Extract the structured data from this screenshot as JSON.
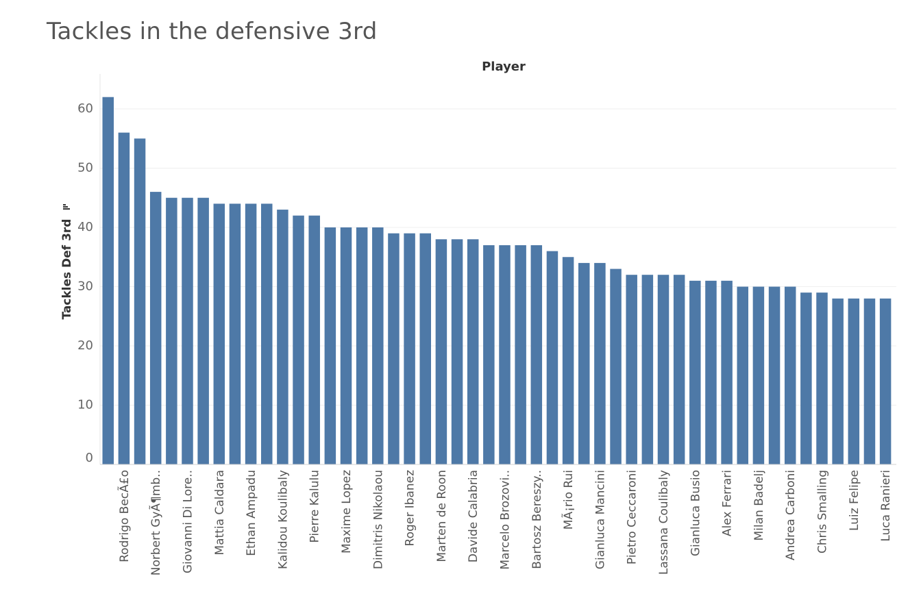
{
  "chart_data": {
    "type": "bar",
    "title": "Tackles in the defensive 3rd",
    "column_header": "Player",
    "ylabel": "Tackles Def 3rd",
    "ylabel_sort_icon": "sort-descending-icon",
    "ylim": [
      0,
      65
    ],
    "yticks": [
      0,
      10,
      20,
      30,
      40,
      50,
      60
    ],
    "grid": true,
    "bar_color": "#4e79a7",
    "values": [
      62,
      56,
      55,
      46,
      45,
      45,
      45,
      44,
      44,
      44,
      44,
      43,
      42,
      42,
      40,
      40,
      40,
      40,
      39,
      39,
      39,
      38,
      38,
      38,
      37,
      37,
      37,
      37,
      36,
      35,
      34,
      34,
      33,
      32,
      32,
      32,
      32,
      31,
      31,
      31,
      30,
      30,
      30,
      30,
      29,
      29,
      28,
      28,
      28,
      28
    ],
    "categories": [
      "",
      "Rodrigo BecÃ£o",
      "",
      "Norbert GyÃ¶mb..",
      "",
      "Giovanni Di Lore..",
      "",
      "Mattia Caldara",
      "",
      "Ethan Ampadu",
      "",
      "Kalidou Koulibaly",
      "",
      "Pierre Kalulu",
      "",
      "Maxime Lopez",
      "",
      "Dimitris Nikolaou",
      "",
      "Roger Ibanez",
      "",
      "Marten de Roon",
      "",
      "Davide Calabria",
      "",
      "Marcelo Brozovi..",
      "",
      "Bartosz Bereszy..",
      "",
      "MÃ¡rio Rui",
      "",
      "Gianluca Mancini",
      "",
      "Pietro Ceccaroni",
      "",
      "Lassana Coulibaly",
      "",
      "Gianluca Busio",
      "",
      "Alex Ferrari",
      "",
      "Milan Badelj",
      "",
      "Andrea Carboni",
      "",
      "Chris Smalling",
      "",
      "Luiz Felipe",
      "",
      "Luca Ranieri"
    ]
  }
}
